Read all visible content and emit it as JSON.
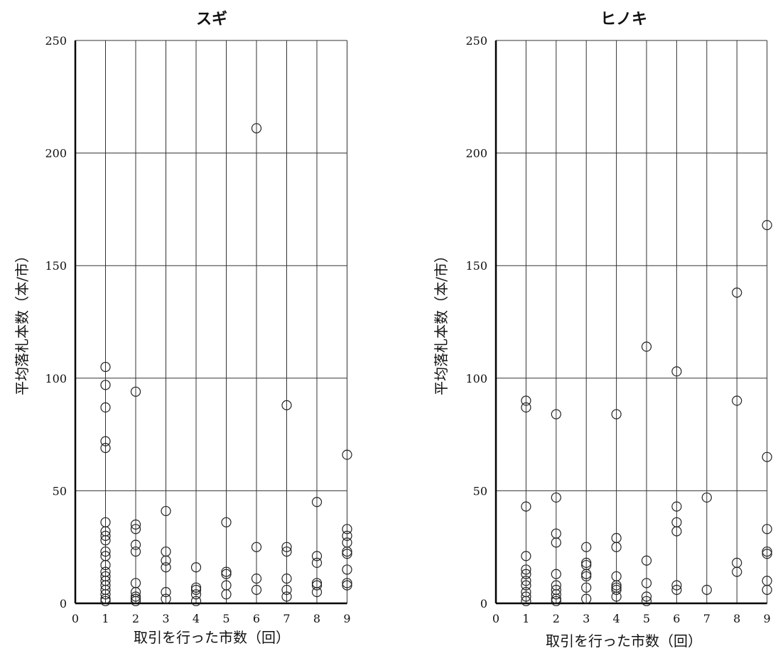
{
  "chart_data": [
    {
      "type": "scatter",
      "title": "スギ",
      "xlabel": "取引を行った市数（回）",
      "ylabel": "平均落札本数（本/市）",
      "xlim": [
        0,
        9
      ],
      "ylim": [
        0,
        250
      ],
      "x_ticks": [
        "0",
        "1",
        "2",
        "3",
        "4",
        "5",
        "6",
        "7",
        "8",
        "9"
      ],
      "y_ticks": [
        "0",
        "50",
        "100",
        "150",
        "200",
        "250"
      ],
      "grid": "on",
      "points": [
        {
          "x": 1,
          "y": 105
        },
        {
          "x": 1,
          "y": 97
        },
        {
          "x": 1,
          "y": 87
        },
        {
          "x": 1,
          "y": 72
        },
        {
          "x": 1,
          "y": 69
        },
        {
          "x": 1,
          "y": 36
        },
        {
          "x": 1,
          "y": 32
        },
        {
          "x": 1,
          "y": 30
        },
        {
          "x": 1,
          "y": 28
        },
        {
          "x": 1,
          "y": 23
        },
        {
          "x": 1,
          "y": 21
        },
        {
          "x": 1,
          "y": 17
        },
        {
          "x": 1,
          "y": 14
        },
        {
          "x": 1,
          "y": 12
        },
        {
          "x": 1,
          "y": 10
        },
        {
          "x": 1,
          "y": 8
        },
        {
          "x": 1,
          "y": 6
        },
        {
          "x": 1,
          "y": 4
        },
        {
          "x": 1,
          "y": 2
        },
        {
          "x": 1,
          "y": 1
        },
        {
          "x": 2,
          "y": 94
        },
        {
          "x": 2,
          "y": 35
        },
        {
          "x": 2,
          "y": 33
        },
        {
          "x": 2,
          "y": 26
        },
        {
          "x": 2,
          "y": 23
        },
        {
          "x": 2,
          "y": 9
        },
        {
          "x": 2,
          "y": 5
        },
        {
          "x": 2,
          "y": 3
        },
        {
          "x": 2,
          "y": 2
        },
        {
          "x": 2,
          "y": 1
        },
        {
          "x": 3,
          "y": 41
        },
        {
          "x": 3,
          "y": 23
        },
        {
          "x": 3,
          "y": 19
        },
        {
          "x": 3,
          "y": 16
        },
        {
          "x": 3,
          "y": 5
        },
        {
          "x": 3,
          "y": 2
        },
        {
          "x": 4,
          "y": 16
        },
        {
          "x": 4,
          "y": 7
        },
        {
          "x": 4,
          "y": 6
        },
        {
          "x": 4,
          "y": 4
        },
        {
          "x": 4,
          "y": 1
        },
        {
          "x": 5,
          "y": 36
        },
        {
          "x": 5,
          "y": 14
        },
        {
          "x": 5,
          "y": 13
        },
        {
          "x": 5,
          "y": 8
        },
        {
          "x": 5,
          "y": 4
        },
        {
          "x": 6,
          "y": 211
        },
        {
          "x": 6,
          "y": 25
        },
        {
          "x": 6,
          "y": 11
        },
        {
          "x": 6,
          "y": 6
        },
        {
          "x": 7,
          "y": 88
        },
        {
          "x": 7,
          "y": 25
        },
        {
          "x": 7,
          "y": 23
        },
        {
          "x": 7,
          "y": 11
        },
        {
          "x": 7,
          "y": 6
        },
        {
          "x": 7,
          "y": 3
        },
        {
          "x": 8,
          "y": 45
        },
        {
          "x": 8,
          "y": 21
        },
        {
          "x": 8,
          "y": 18
        },
        {
          "x": 8,
          "y": 9
        },
        {
          "x": 8,
          "y": 8
        },
        {
          "x": 8,
          "y": 5
        },
        {
          "x": 9,
          "y": 66
        },
        {
          "x": 9,
          "y": 33
        },
        {
          "x": 9,
          "y": 30
        },
        {
          "x": 9,
          "y": 27
        },
        {
          "x": 9,
          "y": 23
        },
        {
          "x": 9,
          "y": 22
        },
        {
          "x": 9,
          "y": 15
        },
        {
          "x": 9,
          "y": 9
        },
        {
          "x": 9,
          "y": 8
        }
      ]
    },
    {
      "type": "scatter",
      "title": "ヒノキ",
      "xlabel": "取引を行った市数（回）",
      "ylabel": "平均落札本数（本/市）",
      "xlim": [
        0,
        9
      ],
      "ylim": [
        0,
        250
      ],
      "x_ticks": [
        "0",
        "1",
        "2",
        "3",
        "4",
        "5",
        "6",
        "7",
        "8",
        "9"
      ],
      "y_ticks": [
        "0",
        "50",
        "100",
        "150",
        "200",
        "250"
      ],
      "grid": "on",
      "points": [
        {
          "x": 1,
          "y": 90
        },
        {
          "x": 1,
          "y": 87
        },
        {
          "x": 1,
          "y": 43
        },
        {
          "x": 1,
          "y": 21
        },
        {
          "x": 1,
          "y": 15
        },
        {
          "x": 1,
          "y": 13
        },
        {
          "x": 1,
          "y": 10
        },
        {
          "x": 1,
          "y": 8
        },
        {
          "x": 1,
          "y": 5
        },
        {
          "x": 1,
          "y": 3
        },
        {
          "x": 1,
          "y": 1
        },
        {
          "x": 2,
          "y": 84
        },
        {
          "x": 2,
          "y": 47
        },
        {
          "x": 2,
          "y": 31
        },
        {
          "x": 2,
          "y": 27
        },
        {
          "x": 2,
          "y": 13
        },
        {
          "x": 2,
          "y": 8
        },
        {
          "x": 2,
          "y": 6
        },
        {
          "x": 2,
          "y": 4
        },
        {
          "x": 2,
          "y": 2
        },
        {
          "x": 2,
          "y": 1
        },
        {
          "x": 3,
          "y": 25
        },
        {
          "x": 3,
          "y": 18
        },
        {
          "x": 3,
          "y": 17
        },
        {
          "x": 3,
          "y": 13
        },
        {
          "x": 3,
          "y": 12
        },
        {
          "x": 3,
          "y": 7
        },
        {
          "x": 3,
          "y": 2
        },
        {
          "x": 4,
          "y": 84
        },
        {
          "x": 4,
          "y": 29
        },
        {
          "x": 4,
          "y": 25
        },
        {
          "x": 4,
          "y": 12
        },
        {
          "x": 4,
          "y": 8
        },
        {
          "x": 4,
          "y": 7
        },
        {
          "x": 4,
          "y": 6
        },
        {
          "x": 4,
          "y": 3
        },
        {
          "x": 5,
          "y": 114
        },
        {
          "x": 5,
          "y": 19
        },
        {
          "x": 5,
          "y": 9
        },
        {
          "x": 5,
          "y": 3
        },
        {
          "x": 5,
          "y": 1
        },
        {
          "x": 6,
          "y": 103
        },
        {
          "x": 6,
          "y": 43
        },
        {
          "x": 6,
          "y": 36
        },
        {
          "x": 6,
          "y": 32
        },
        {
          "x": 6,
          "y": 8
        },
        {
          "x": 6,
          "y": 6
        },
        {
          "x": 7,
          "y": 47
        },
        {
          "x": 7,
          "y": 6
        },
        {
          "x": 8,
          "y": 138
        },
        {
          "x": 8,
          "y": 90
        },
        {
          "x": 8,
          "y": 18
        },
        {
          "x": 8,
          "y": 14
        },
        {
          "x": 9,
          "y": 168
        },
        {
          "x": 9,
          "y": 65
        },
        {
          "x": 9,
          "y": 33
        },
        {
          "x": 9,
          "y": 23
        },
        {
          "x": 9,
          "y": 22
        },
        {
          "x": 9,
          "y": 10
        },
        {
          "x": 9,
          "y": 6
        }
      ]
    }
  ]
}
